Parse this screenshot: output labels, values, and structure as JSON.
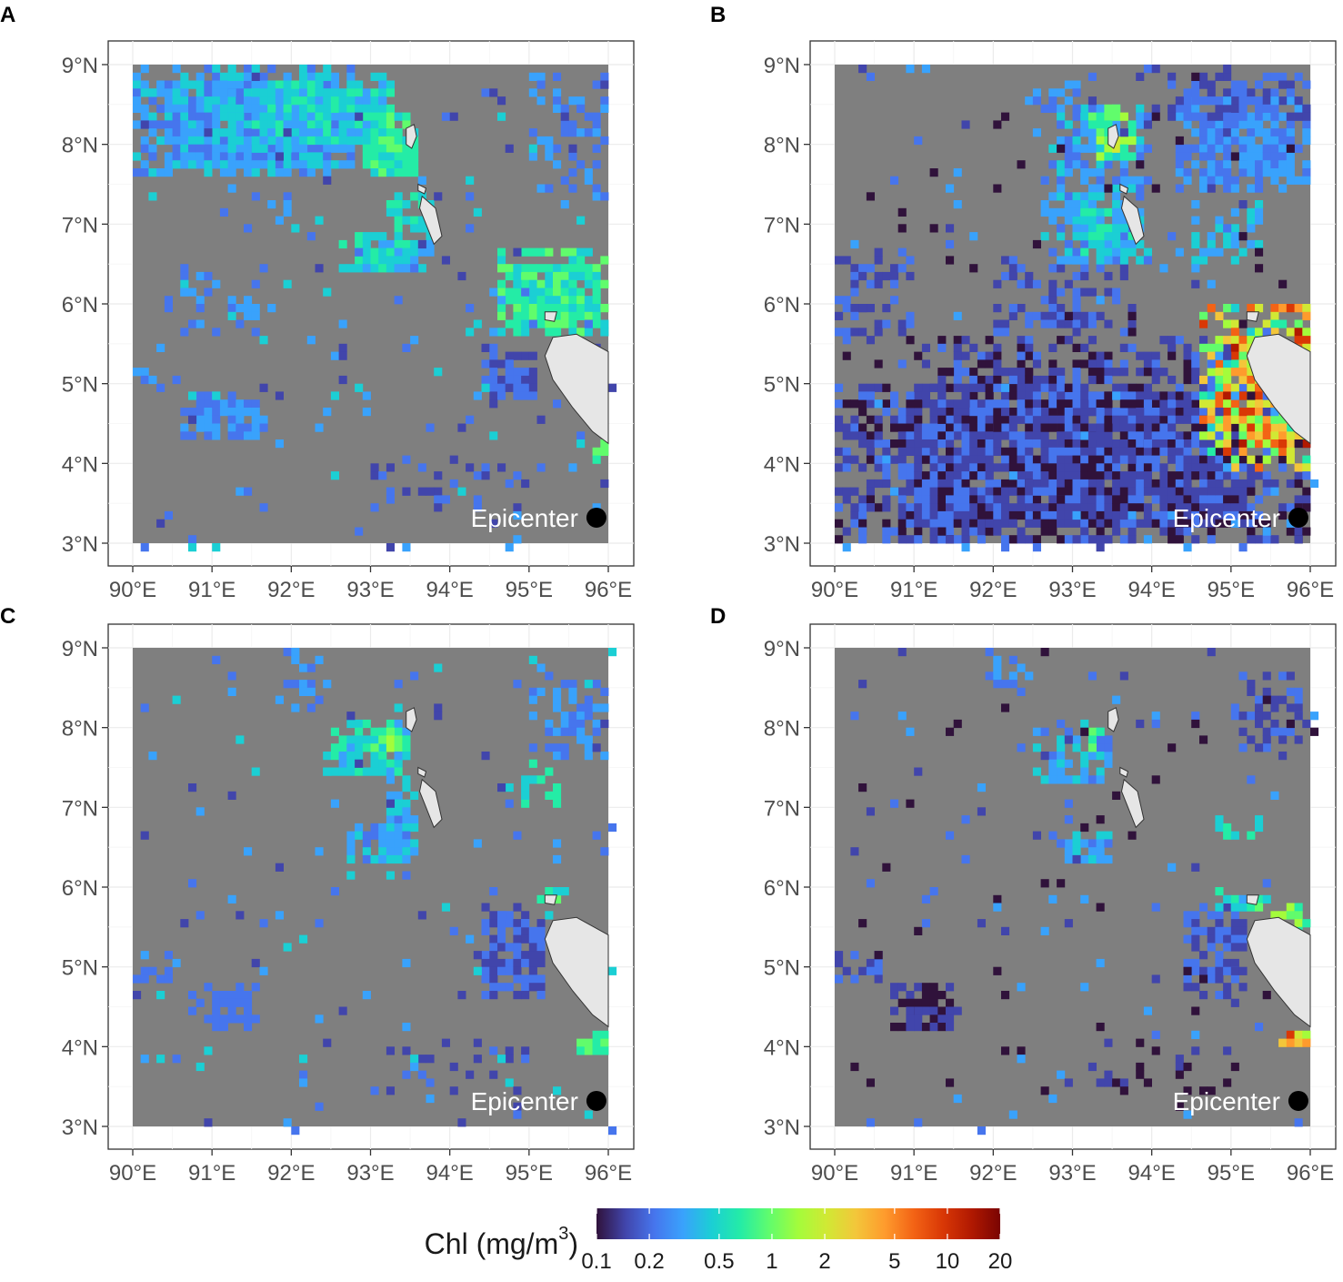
{
  "figure": {
    "panels": [
      {
        "letter": "A",
        "id": "a"
      },
      {
        "letter": "B",
        "id": "b"
      },
      {
        "letter": "C",
        "id": "c"
      },
      {
        "letter": "D",
        "id": "d"
      }
    ],
    "lon_ticks": [
      "90°E",
      "91°E",
      "92°E",
      "93°E",
      "94°E",
      "95°E",
      "96°E"
    ],
    "lat_ticks": [
      "9°N",
      "8°N",
      "7°N",
      "6°N",
      "5°N",
      "4°N",
      "3°N"
    ],
    "epicenter_label": "Epicenter",
    "legend": {
      "title_prefix": "Chl (mg/m",
      "title_sup": "3",
      "title_suffix": ")",
      "ticks": [
        "0.1",
        "0.2",
        "0.5",
        "1",
        "2",
        "5",
        "10",
        "20"
      ],
      "colors": [
        "#30123b",
        "#4145ab",
        "#4675ed",
        "#39a2fc",
        "#1bcfd4",
        "#24eca6",
        "#61fc6c",
        "#a4fc3b",
        "#d1e834",
        "#f3c63a",
        "#fe9b2d",
        "#f36315",
        "#d93806",
        "#b11901",
        "#7a0402"
      ]
    }
  },
  "chart_data": {
    "type": "heatmap",
    "variable": "Chl (mg/m3)",
    "x_ticks": [
      "90°E",
      "91°E",
      "92°E",
      "93°E",
      "94°E",
      "95°E",
      "96°E"
    ],
    "y_ticks": [
      "3°N",
      "4°N",
      "5°N",
      "6°N",
      "7°N",
      "8°N",
      "9°N"
    ],
    "xlim": [
      90,
      96
    ],
    "ylim": [
      3,
      9
    ],
    "color_scale": "log",
    "color_range": [
      0.1,
      20
    ],
    "colorbar_ticks": [
      0.1,
      0.2,
      0.5,
      1,
      2,
      5,
      10,
      20
    ],
    "epicenter": {
      "lon": 95.85,
      "lat": 3.32,
      "label": "Epicenter"
    },
    "panels": [
      "A",
      "B",
      "C",
      "D"
    ]
  }
}
